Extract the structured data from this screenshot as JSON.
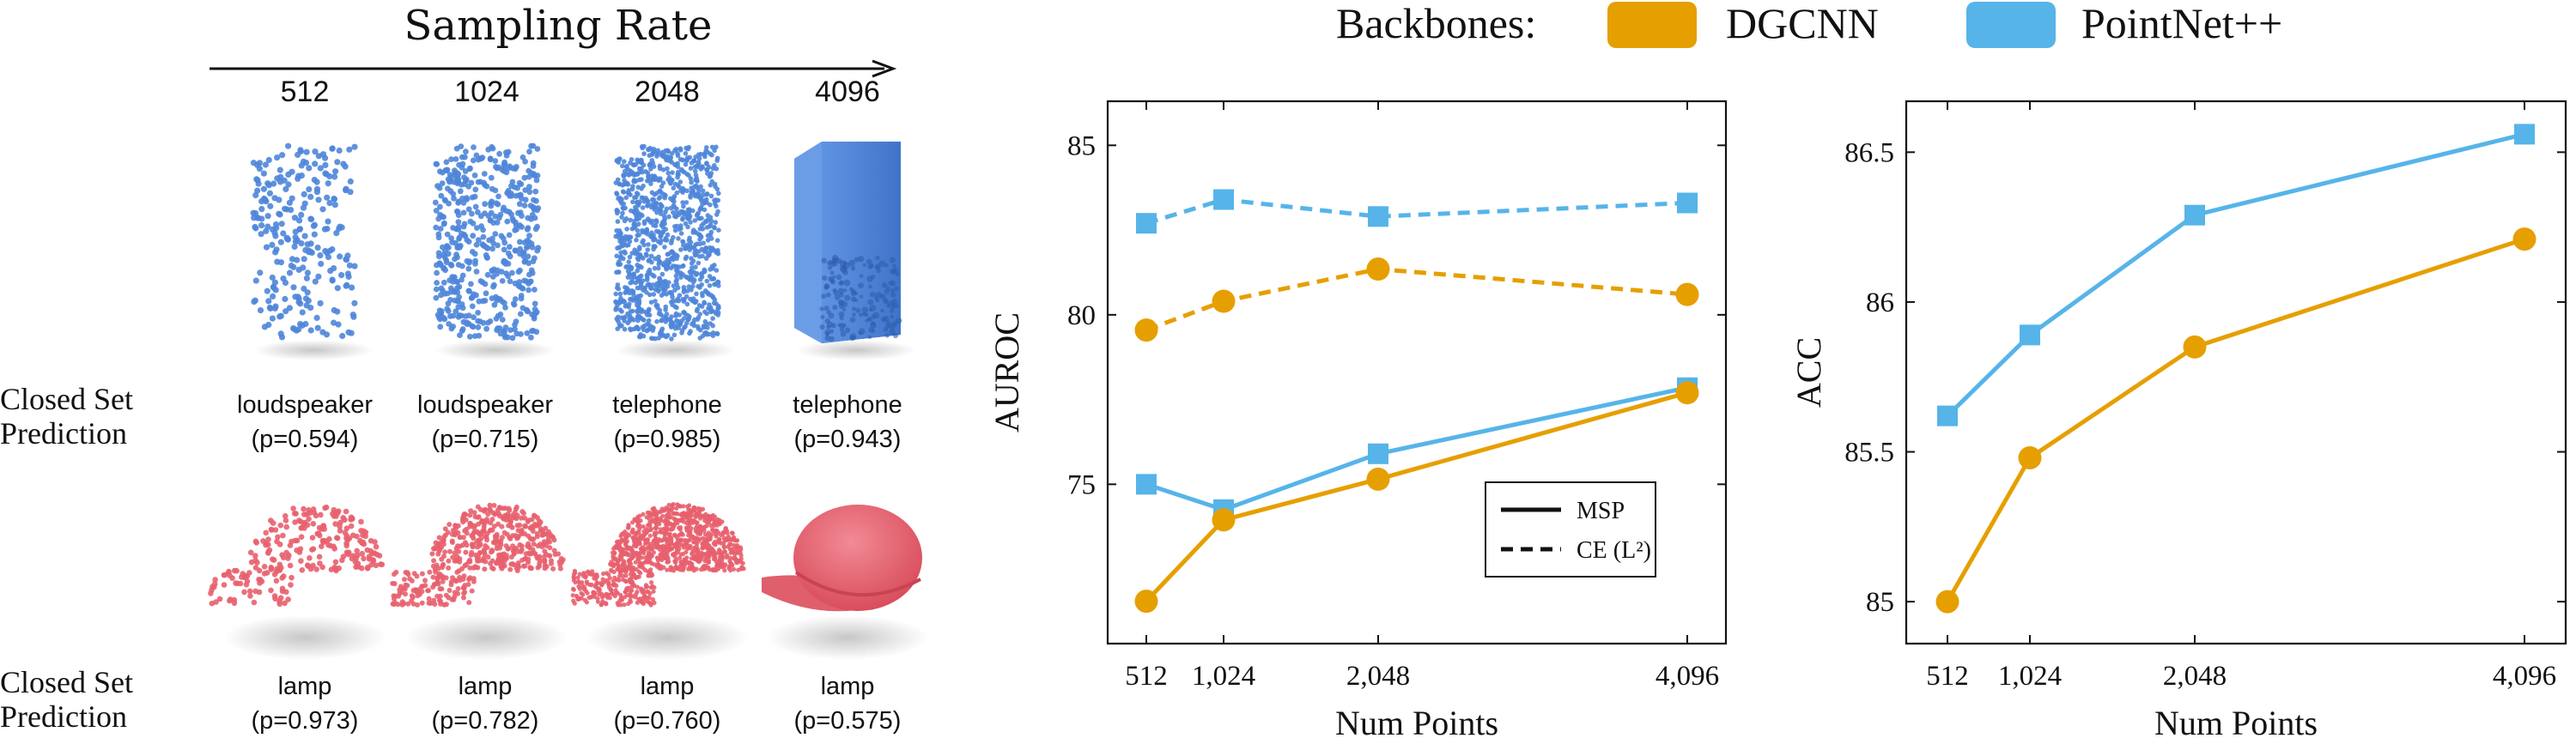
{
  "left_panel": {
    "title": "Sampling Rate",
    "sampling_rates": [
      "512",
      "1024",
      "2048",
      "4096"
    ],
    "row_label_line1": "Closed Set",
    "row_label_line2": "Prediction",
    "rows": [
      {
        "object": "point-cloud-box",
        "color": "#4f86d9",
        "predictions": [
          {
            "label": "loudspeaker",
            "prob": "(p=0.594)"
          },
          {
            "label": "loudspeaker",
            "prob": "(p=0.715)"
          },
          {
            "label": "telephone",
            "prob": "(p=0.985)"
          },
          {
            "label": "telephone",
            "prob": "(p=0.943)"
          }
        ]
      },
      {
        "object": "point-cloud-cap",
        "color": "#e8606e",
        "predictions": [
          {
            "label": "lamp",
            "prob": "(p=0.973)"
          },
          {
            "label": "lamp",
            "prob": "(p=0.782)"
          },
          {
            "label": "lamp",
            "prob": "(p=0.760)"
          },
          {
            "label": "lamp",
            "prob": "(p=0.575)"
          }
        ]
      }
    ]
  },
  "legend": {
    "title": "Backbones:",
    "items": [
      {
        "name": "DGCNN",
        "color": "#E69F00"
      },
      {
        "name": "PointNet++",
        "color": "#56B4E9"
      }
    ]
  },
  "chart_data": [
    {
      "type": "line",
      "title": "",
      "xlabel": "Num Points",
      "ylabel": "AUROC",
      "x": [
        512,
        1024,
        2048,
        4096
      ],
      "xtick_labels": [
        "512",
        "1,024",
        "2,048",
        "4,096"
      ],
      "ylim": [
        70.3,
        86.3
      ],
      "yticks": [
        75,
        80,
        85
      ],
      "style_legend": [
        {
          "label": "MSP",
          "style": "solid"
        },
        {
          "label": "CE (L²)",
          "style": "dashed"
        }
      ],
      "series": [
        {
          "name": "PointNet++ CE (L²)",
          "backbone": "PointNet++",
          "color": "#56B4E9",
          "style": "dashed",
          "marker": "square",
          "values": [
            82.7,
            83.4,
            82.9,
            83.3
          ]
        },
        {
          "name": "DGCNN CE (L²)",
          "backbone": "DGCNN",
          "color": "#E69F00",
          "style": "dashed",
          "marker": "circle",
          "values": [
            79.55,
            80.4,
            81.35,
            80.6
          ]
        },
        {
          "name": "PointNet++ MSP",
          "backbone": "PointNet++",
          "color": "#56B4E9",
          "style": "solid",
          "marker": "square",
          "values": [
            75.0,
            74.25,
            75.9,
            77.85
          ]
        },
        {
          "name": "DGCNN MSP",
          "backbone": "DGCNN",
          "color": "#E69F00",
          "style": "solid",
          "marker": "circle",
          "values": [
            71.55,
            73.95,
            75.15,
            77.7
          ]
        }
      ]
    },
    {
      "type": "line",
      "title": "",
      "xlabel": "Num Points",
      "ylabel": "ACC",
      "x": [
        512,
        1024,
        2048,
        4096
      ],
      "xtick_labels": [
        "512",
        "1,024",
        "2,048",
        "4,096"
      ],
      "ylim": [
        84.86,
        86.67
      ],
      "yticks": [
        85,
        85.5,
        86,
        86.5
      ],
      "ytick_labels": [
        "85",
        "85.5",
        "86",
        "86.5"
      ],
      "series": [
        {
          "name": "PointNet++",
          "backbone": "PointNet++",
          "color": "#56B4E9",
          "style": "solid",
          "marker": "square",
          "values": [
            85.62,
            85.89,
            86.29,
            86.56
          ]
        },
        {
          "name": "DGCNN",
          "backbone": "DGCNN",
          "color": "#E69F00",
          "style": "solid",
          "marker": "circle",
          "values": [
            85.0,
            85.48,
            85.85,
            86.21
          ]
        }
      ]
    }
  ]
}
